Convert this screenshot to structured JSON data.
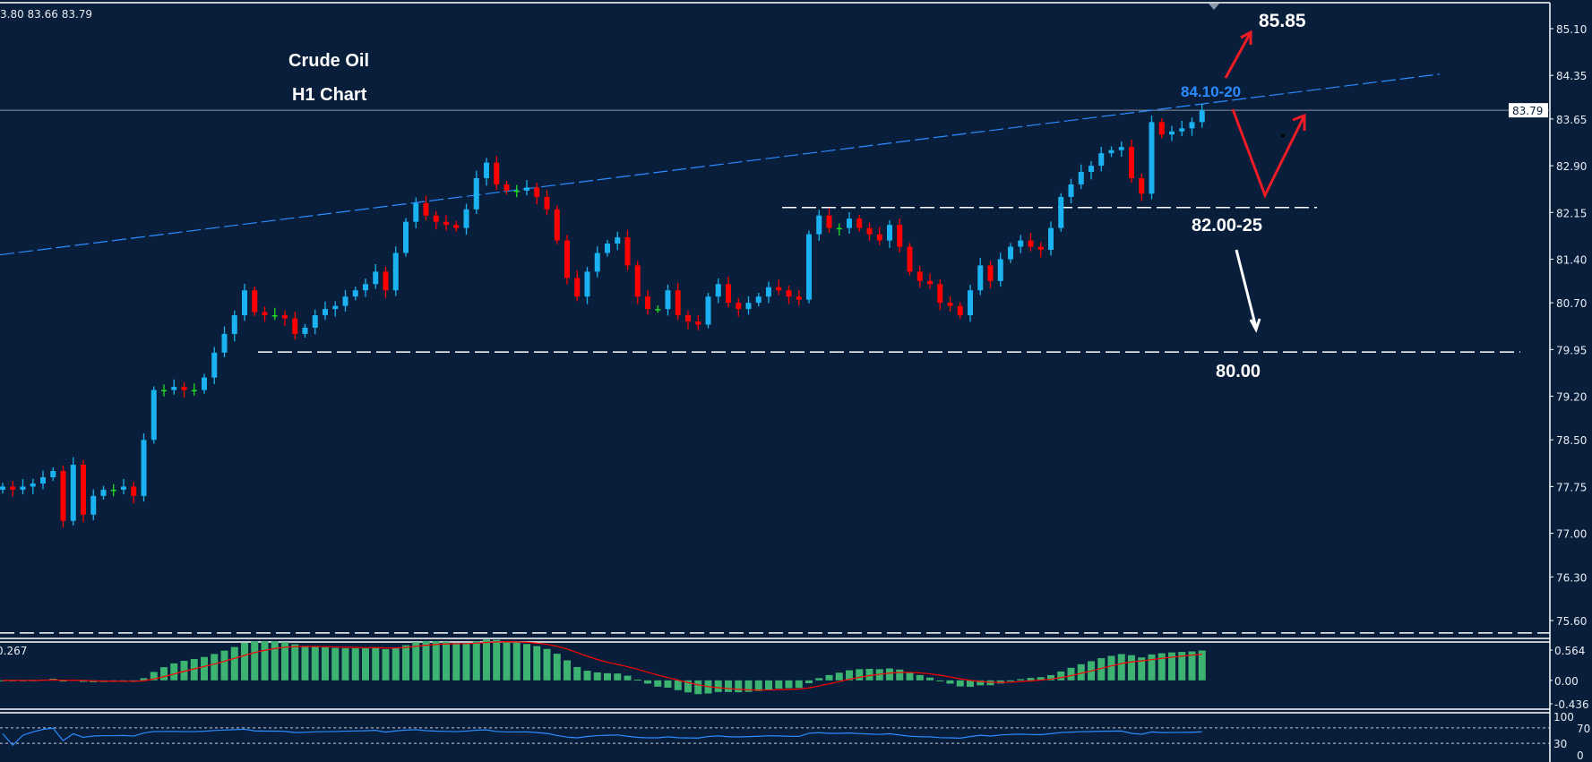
{
  "header": {
    "ohlc_readout": "3.80 83.66 83.79"
  },
  "colors": {
    "background": "#081e3b",
    "bull": "#1ab2f0",
    "bear": "#ff0000",
    "doji": "#22dd22",
    "trendline": "#2a8cff",
    "macd_hist": "#3cb371",
    "macd_signal": "#ff0000",
    "rsi": "#2a8cff",
    "annotation_red": "#ee1c25",
    "annotation_white": "#ffffff"
  },
  "chart_data": {
    "type": "candlestick",
    "title": "Crude Oil",
    "subtitle": "H1 Chart",
    "current_price": 83.79,
    "current_price_label": "83.79",
    "y_ticks": [
      "85.10",
      "84.35",
      "83.65",
      "82.90",
      "82.15",
      "81.40",
      "80.70",
      "79.95",
      "79.20",
      "78.50",
      "77.75",
      "77.00",
      "76.30",
      "75.60"
    ],
    "ylim": [
      75.3,
      85.55
    ],
    "grid": false,
    "closes": [
      77.75,
      77.7,
      77.75,
      77.8,
      77.9,
      78.0,
      77.2,
      78.1,
      77.3,
      77.6,
      77.7,
      77.7,
      77.75,
      77.6,
      78.5,
      79.3,
      79.3,
      79.35,
      79.3,
      79.3,
      79.5,
      79.9,
      80.2,
      80.5,
      80.9,
      80.55,
      80.5,
      80.5,
      80.45,
      80.2,
      80.3,
      80.5,
      80.6,
      80.65,
      80.8,
      80.9,
      81.0,
      81.2,
      80.9,
      81.5,
      82.0,
      82.3,
      82.1,
      82.0,
      81.95,
      81.9,
      82.2,
      82.7,
      82.95,
      82.6,
      82.5,
      82.5,
      82.55,
      82.4,
      82.2,
      81.7,
      81.1,
      80.8,
      81.2,
      81.5,
      81.65,
      81.75,
      81.3,
      80.8,
      80.6,
      80.6,
      80.9,
      80.5,
      80.4,
      80.35,
      80.8,
      81.0,
      80.7,
      80.6,
      80.7,
      80.8,
      80.95,
      80.9,
      80.8,
      80.75,
      81.8,
      82.1,
      81.9,
      81.9,
      82.05,
      81.9,
      81.8,
      81.7,
      81.95,
      81.6,
      81.2,
      81.05,
      81.0,
      80.7,
      80.65,
      80.5,
      80.9,
      81.3,
      81.05,
      81.4,
      81.6,
      81.7,
      81.6,
      81.55,
      81.9,
      82.4,
      82.6,
      82.8,
      82.9,
      83.1,
      83.15,
      83.2,
      82.7,
      82.45,
      83.6,
      83.4,
      83.45,
      83.5,
      83.6,
      83.79
    ],
    "trendline": {
      "start_price": 81.47,
      "end_price": 84.37
    },
    "levels": [
      {
        "price": 82.23,
        "style": "dashed"
      },
      {
        "price": 79.91,
        "style": "dashed"
      },
      {
        "price": 75.4,
        "style": "dashed"
      }
    ],
    "annotations": {
      "target_up": "85.85",
      "resistance": "84.10-20",
      "support": "82.00-25",
      "target_down": "80.00"
    },
    "macd": {
      "value_label": "0.267",
      "ticks": [
        "0.564",
        "0.00",
        "-0.436"
      ],
      "range": [
        -0.436,
        0.564
      ]
    },
    "rsi": {
      "ticks": [
        "100",
        "70",
        "30",
        "0"
      ],
      "levels": [
        70,
        30
      ]
    }
  }
}
